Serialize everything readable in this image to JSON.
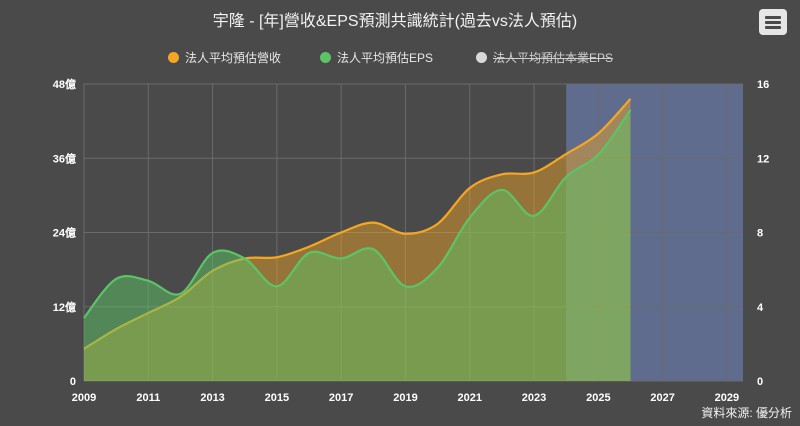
{
  "chart": {
    "title": "宇隆 - [年]營收&EPS預測共識統計(過去vs法人預估)",
    "source": "資料來源: 優分析",
    "menu_icon": "hamburger-menu-icon"
  },
  "legend": [
    {
      "label": "法人平均預估營收",
      "color": "#f5a623",
      "hidden": false
    },
    {
      "label": "法人平均預估EPS",
      "color": "#5cc466",
      "hidden": false
    },
    {
      "label": "法人平均預估本業EPS",
      "color": "#d9d9d9",
      "hidden": true
    }
  ],
  "colors": {
    "revenue": "#f5a623",
    "eps": "#5cc466",
    "forecast_band": "#6878a6",
    "grid": "#6a6a6a",
    "axis_text": "#ffffff"
  },
  "chart_data": {
    "type": "area",
    "title": "宇隆 - [年]營收&EPS預測共識統計(過去vs法人預估)",
    "x_ticks": [
      "2009",
      "2011",
      "2013",
      "2015",
      "2017",
      "2019",
      "2021",
      "2023",
      "2025",
      "2027",
      "2029"
    ],
    "xlim": [
      2009,
      2029.5
    ],
    "y_left": {
      "ticks": [
        "0",
        "12億",
        "24億",
        "36億",
        "48億"
      ],
      "range": [
        0,
        48
      ],
      "unit": "億"
    },
    "y_right": {
      "ticks": [
        "0",
        "4",
        "8",
        "12",
        "16"
      ],
      "range": [
        0,
        16
      ]
    },
    "forecast_band": {
      "from": 2024.0,
      "to": 2029.5
    },
    "grid": true,
    "legend_position": "top",
    "series": [
      {
        "name": "法人平均預估營收",
        "axis": "left",
        "x": [
          2009,
          2010,
          2011,
          2012,
          2013,
          2014,
          2015,
          2016,
          2017,
          2018,
          2019,
          2020,
          2021,
          2022,
          2023,
          2024,
          2025,
          2026
        ],
        "values": [
          5.2,
          8.4,
          11.0,
          13.6,
          17.8,
          19.8,
          20.0,
          21.7,
          24.0,
          25.6,
          23.8,
          25.4,
          31.2,
          33.4,
          33.7,
          36.7,
          40.0,
          45.6
        ]
      },
      {
        "name": "法人平均預估EPS",
        "axis": "right",
        "x": [
          2009,
          2010,
          2011,
          2012,
          2013,
          2014,
          2015,
          2016,
          2017,
          2018,
          2019,
          2020,
          2021,
          2022,
          2023,
          2024,
          2025,
          2026
        ],
        "values": [
          3.4,
          5.5,
          5.4,
          4.7,
          6.9,
          6.6,
          5.1,
          6.9,
          6.6,
          7.1,
          5.1,
          6.1,
          8.8,
          10.3,
          8.9,
          11.0,
          12.2,
          14.6
        ]
      }
    ]
  }
}
